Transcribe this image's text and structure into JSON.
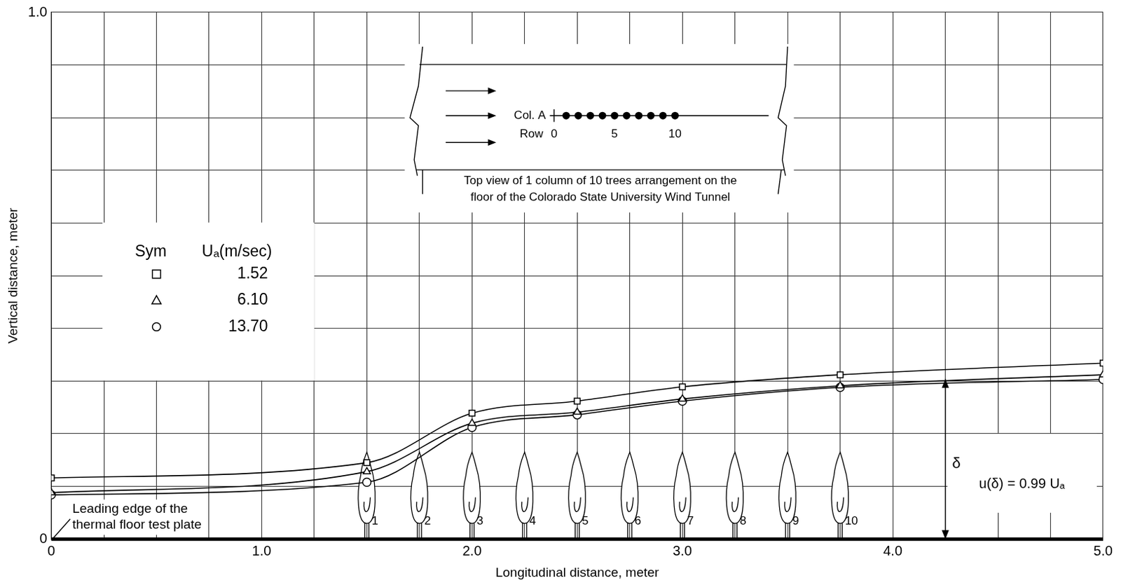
{
  "chart_data": {
    "type": "line",
    "x_label": "Longitudinal distance, meter",
    "y_label": "Vertical distance, meter",
    "xlim": [
      0,
      5
    ],
    "ylim": [
      0,
      1
    ],
    "xticks": [
      0,
      {
        "value": 1,
        "label": "1.0"
      },
      {
        "value": 2,
        "label": "2.0"
      },
      {
        "value": 3,
        "label": "3.0"
      },
      {
        "value": 4,
        "label": "4.0"
      },
      {
        "value": 5,
        "label": "5.0"
      }
    ],
    "yticks": [
      0,
      {
        "value": 1,
        "label": "1.0"
      }
    ],
    "grid": true,
    "legend": "left",
    "legend_title": [
      "Sym",
      "Uₐ(m/sec)"
    ],
    "x": [
      0,
      1.5,
      2.0,
      2.5,
      3.0,
      3.75,
      5.0
    ],
    "series": [
      {
        "name": "1.52",
        "color": "#000000",
        "marker": "square",
        "line_style": "solid",
        "values": [
          0.116,
          0.145,
          0.239,
          0.262,
          0.289,
          0.312,
          0.334
        ]
      },
      {
        "name": "6.10",
        "color": "#000000",
        "marker": "triangle",
        "line_style": "solid",
        "values": [
          0.088,
          0.128,
          0.22,
          0.241,
          0.266,
          0.291,
          0.312
        ]
      },
      {
        "name": "13.70",
        "color": "#000000",
        "marker": "circle",
        "line_style": "solid",
        "values": [
          0.084,
          0.108,
          0.212,
          0.236,
          0.262,
          0.288,
          0.303
        ]
      }
    ],
    "trees": {
      "x": [
        1.5,
        1.75,
        2.0,
        2.25,
        2.5,
        2.75,
        3.0,
        3.25,
        3.5,
        3.75
      ],
      "labels": [
        "1",
        "2",
        "3",
        "4",
        "5",
        "6",
        "7",
        "8",
        "9",
        "10"
      ],
      "height": 0.165
    },
    "leading_edge_note": [
      "Leading edge of the",
      "thermal floor test plate"
    ],
    "delta_marker": {
      "x": 4.25,
      "y": [
        0,
        0.304
      ],
      "label": "δ",
      "note": "u(δ) = 0.99 Uₐ"
    },
    "inset": {
      "column_label": "Col. A",
      "row_label": "Row",
      "row_ticks": [
        "0",
        "5",
        "10"
      ],
      "caption_lines": [
        "Top view of 1 column of 10 trees arrangement on the",
        "floor of the Colorado State University Wind Tunnel"
      ]
    }
  }
}
